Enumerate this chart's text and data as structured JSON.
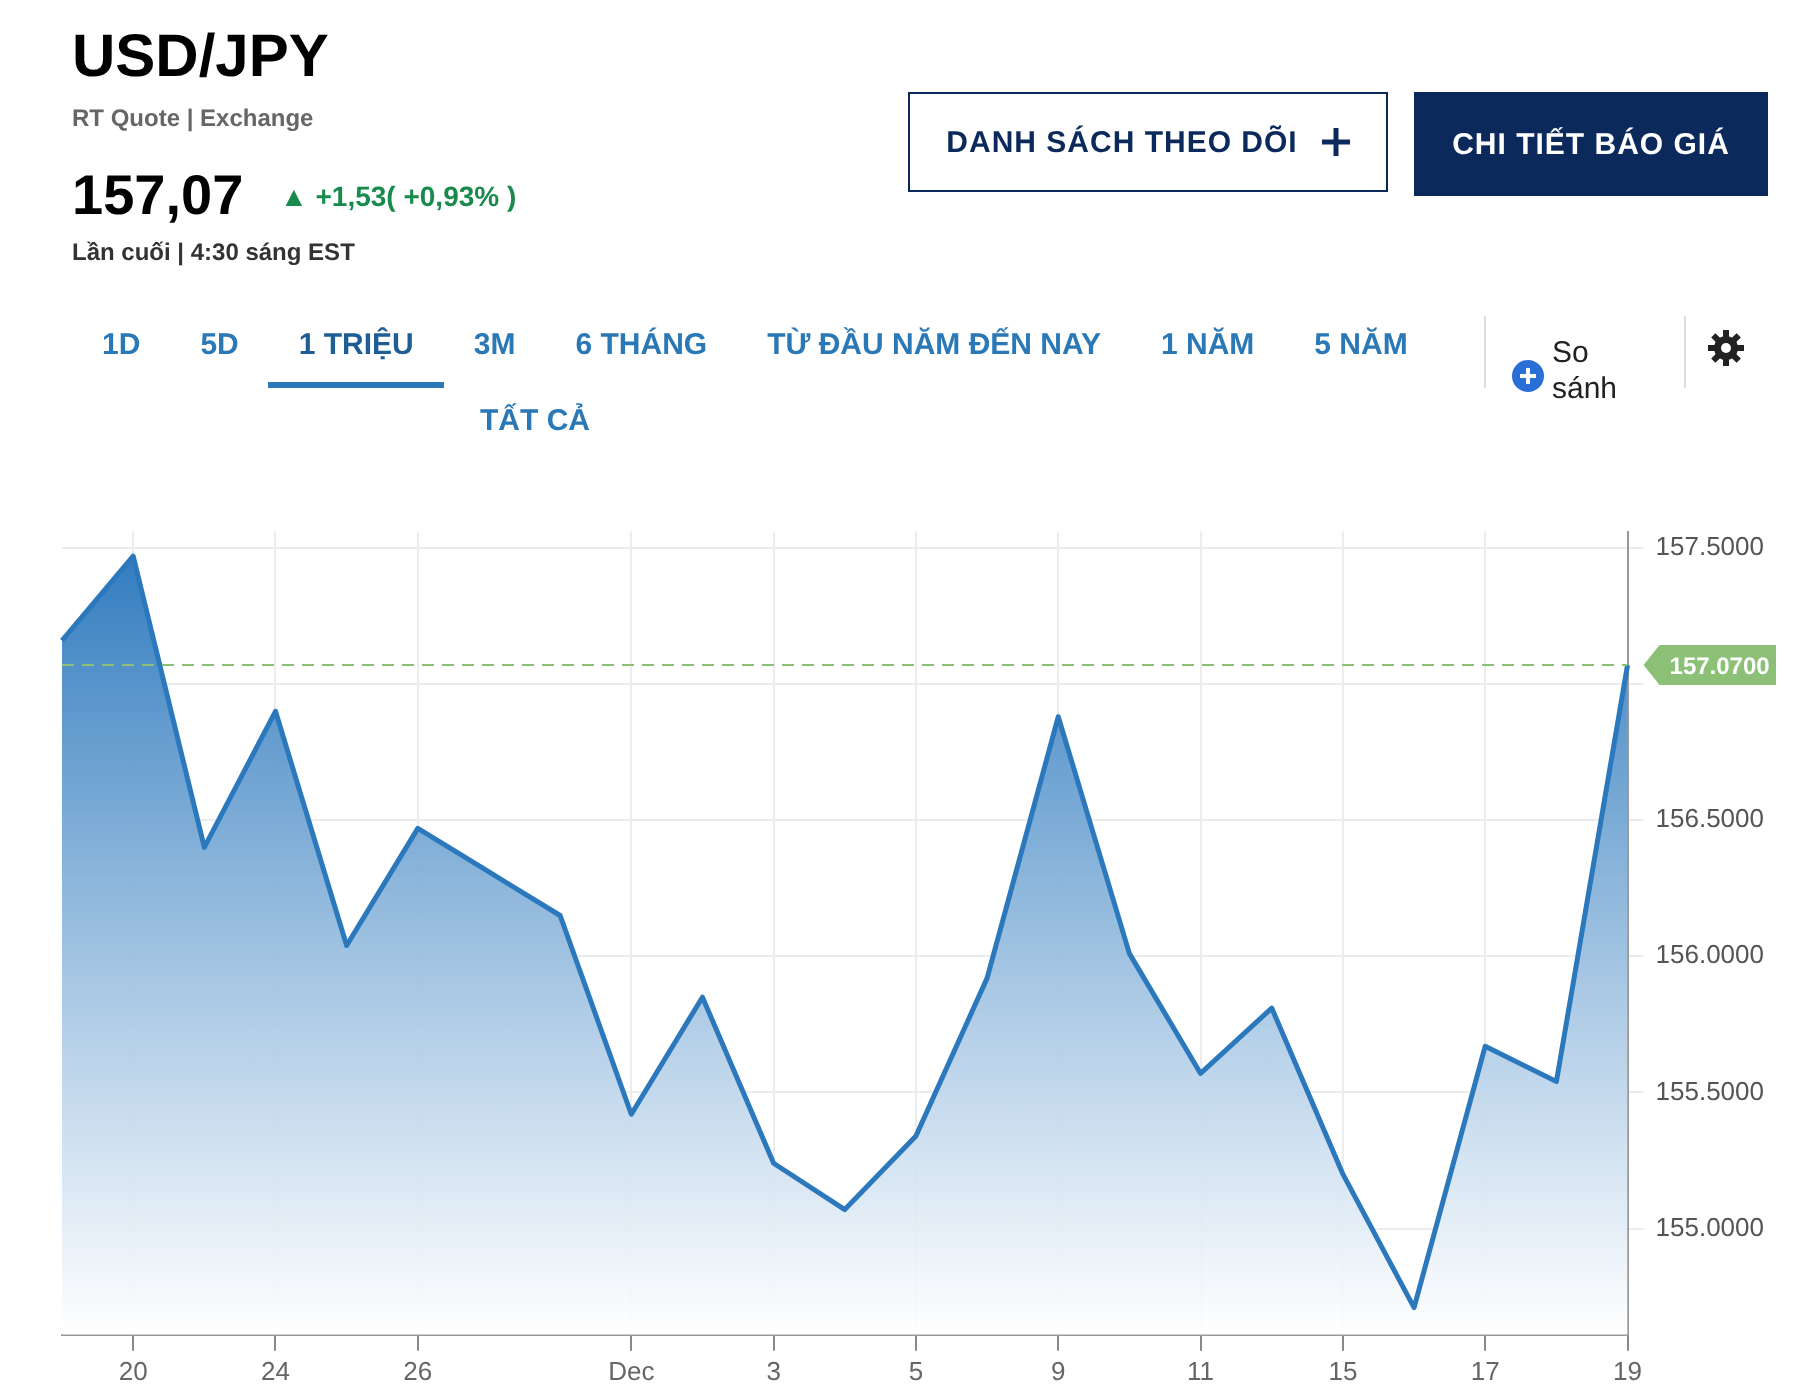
{
  "chart_data": {
    "type": "area",
    "title": "USD/JPY",
    "subtitle": "RT Quote | Exchange",
    "categories": [
      null,
      "20",
      null,
      "24",
      null,
      "26",
      null,
      null,
      "Dec",
      null,
      "3",
      null,
      "5",
      null,
      "9",
      null,
      "11",
      null,
      "15",
      null,
      "17",
      null,
      "19"
    ],
    "series": [
      {
        "color": "#2b78bd",
        "values": [
          157.16,
          157.47,
          156.4,
          156.9,
          156.04,
          156.47,
          156.31,
          156.15,
          155.42,
          155.85,
          155.24,
          155.07,
          155.34,
          155.92,
          156.88,
          156.01,
          155.57,
          155.81,
          155.2,
          154.71,
          155.67,
          155.54,
          157.07
        ]
      }
    ],
    "ylim": [
      154.61,
      157.56
    ],
    "yticks": [
      {
        "value": 155,
        "label": "155.0000"
      },
      {
        "value": 155.5,
        "label": "155.5000"
      },
      {
        "value": 156,
        "label": "156.0000"
      },
      {
        "value": 156.5,
        "label": "156.5000"
      },
      {
        "value": 157,
        "label": null
      },
      {
        "value": 157.5,
        "label": "157.5000"
      }
    ],
    "ref_lines": [
      {
        "axis": "y",
        "value": 157.07,
        "label": "157.0700",
        "color": "#8cc077",
        "line_style": "dashed"
      }
    ],
    "grid": true,
    "legend": false,
    "marker": "none",
    "line_style": "solid",
    "annotations": [
      "157,07",
      "▲ +1,53( +0,93% )",
      "Lần cuối | 4:30 sáng EST",
      "DANH SÁCH THEO DÕI",
      "CHI TIẾT BÁO GIÁ",
      "1D",
      "5D",
      "1 TRIỆU",
      "3M",
      "6 THÁNG",
      "TỪ ĐẦU NĂM ĐẾN NAY",
      "1 NĂM",
      "5 NĂM",
      "TẤT CẢ",
      "So sánh"
    ]
  }
}
